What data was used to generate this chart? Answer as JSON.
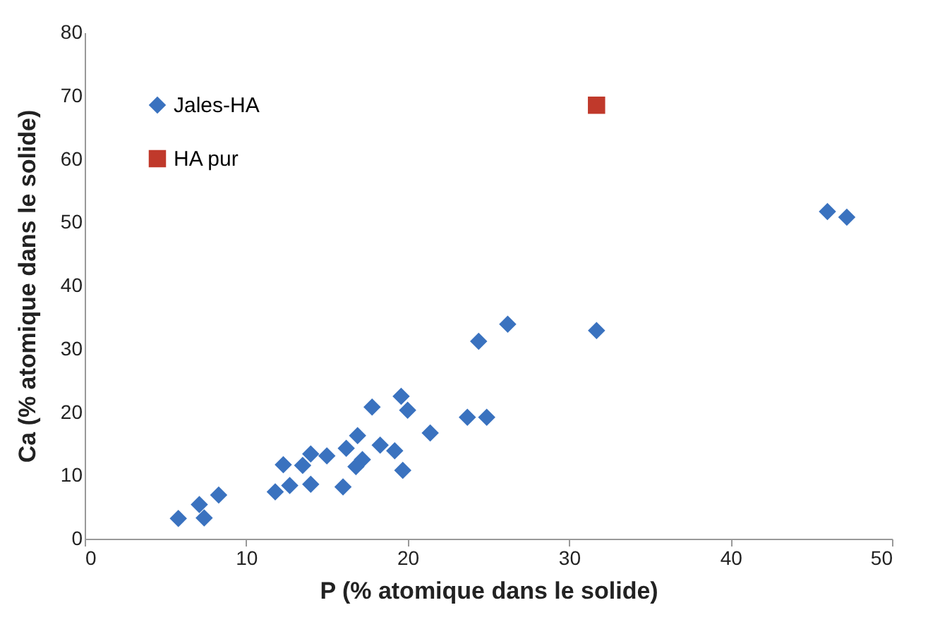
{
  "chart_data": {
    "type": "scatter",
    "xlabel": "P (% atomique dans le solide)",
    "ylabel": "Ca (% atomique dans le solide)",
    "xlim": [
      0,
      50
    ],
    "xticks": [
      0,
      10,
      20,
      30,
      40,
      50
    ],
    "ylim": [
      0,
      80
    ],
    "yticks": [
      0,
      10,
      20,
      30,
      40,
      50,
      60,
      70,
      80
    ],
    "grid": false,
    "legend": "top left",
    "series": [
      {
        "name": "Jales-HA",
        "color": "#3a72bf",
        "marker": "diamond",
        "x": [
          5.8,
          7.1,
          7.4,
          8.3,
          11.8,
          12.3,
          12.7,
          14.0,
          13.5,
          14.0,
          15.0,
          16.0,
          16.2,
          16.9,
          17.2,
          16.8,
          17.8,
          18.3,
          19.2,
          19.7,
          19.6,
          20.0,
          21.4,
          23.7,
          24.9,
          24.4,
          26.2,
          31.7,
          46.0,
          47.2
        ],
        "values": [
          3.2,
          5.4,
          3.3,
          6.9,
          7.4,
          11.7,
          8.4,
          8.6,
          11.6,
          13.4,
          13.1,
          8.2,
          14.3,
          16.3,
          12.5,
          11.4,
          20.8,
          14.8,
          13.9,
          10.8,
          22.5,
          20.3,
          16.7,
          19.2,
          19.2,
          31.2,
          33.9,
          32.9,
          51.7,
          50.8
        ]
      },
      {
        "name": "HA pur",
        "color": "#c0392b",
        "marker": "square",
        "x": [
          31.7
        ],
        "values": [
          68.5
        ]
      }
    ]
  }
}
